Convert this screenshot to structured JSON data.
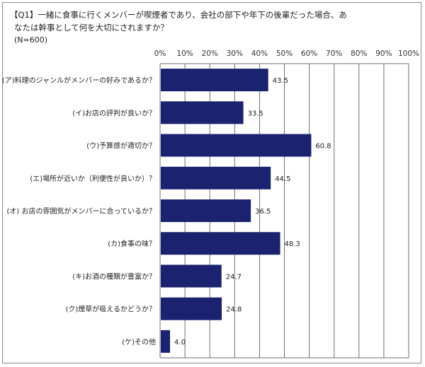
{
  "question": {
    "line1": "【Q1】一緒に食事に行くメンバーが喫煙者であり、会社の部下や年下の後輩だった場合、あ",
    "line2": "なたは幹事として何を大切にされますか？",
    "sample": "(N=600)"
  },
  "colors": {
    "bar": "#1b2370",
    "grid": "#6f6f6f",
    "frame": "#8a8a8a"
  },
  "chart_data": {
    "type": "bar",
    "orientation": "horizontal",
    "categories": [
      "(ア)料理のジャンルがメンバーの好みであるか？",
      "(イ)お店の評判が良いか？",
      "(ウ)予算感が適切か？",
      "(エ)場所が近いか（利便性が良いか）？",
      "(オ) お店の雰囲気がメンバーに合っているか？",
      "(カ)食事の味？",
      "(キ)お酒の種類が豊富か？",
      "(ク)煙草が吸えるかどうか？",
      "(ケ)その他"
    ],
    "values": [
      43.5,
      33.5,
      60.8,
      44.5,
      36.5,
      48.3,
      24.7,
      24.8,
      4.0
    ],
    "value_labels": [
      "43.5",
      "33.5",
      "60.8",
      "44.5",
      "36.5",
      "48.3",
      "24.7",
      "24.8",
      "4.0"
    ],
    "xlim": [
      0,
      100
    ],
    "ticks": [
      0,
      10,
      20,
      30,
      40,
      50,
      60,
      70,
      80,
      90,
      100
    ],
    "tick_labels": [
      "0%",
      "10%",
      "20%",
      "30%",
      "40%",
      "50%",
      "60%",
      "70%",
      "80%",
      "90%",
      "100%"
    ],
    "axis_position": "top",
    "grid": true
  }
}
